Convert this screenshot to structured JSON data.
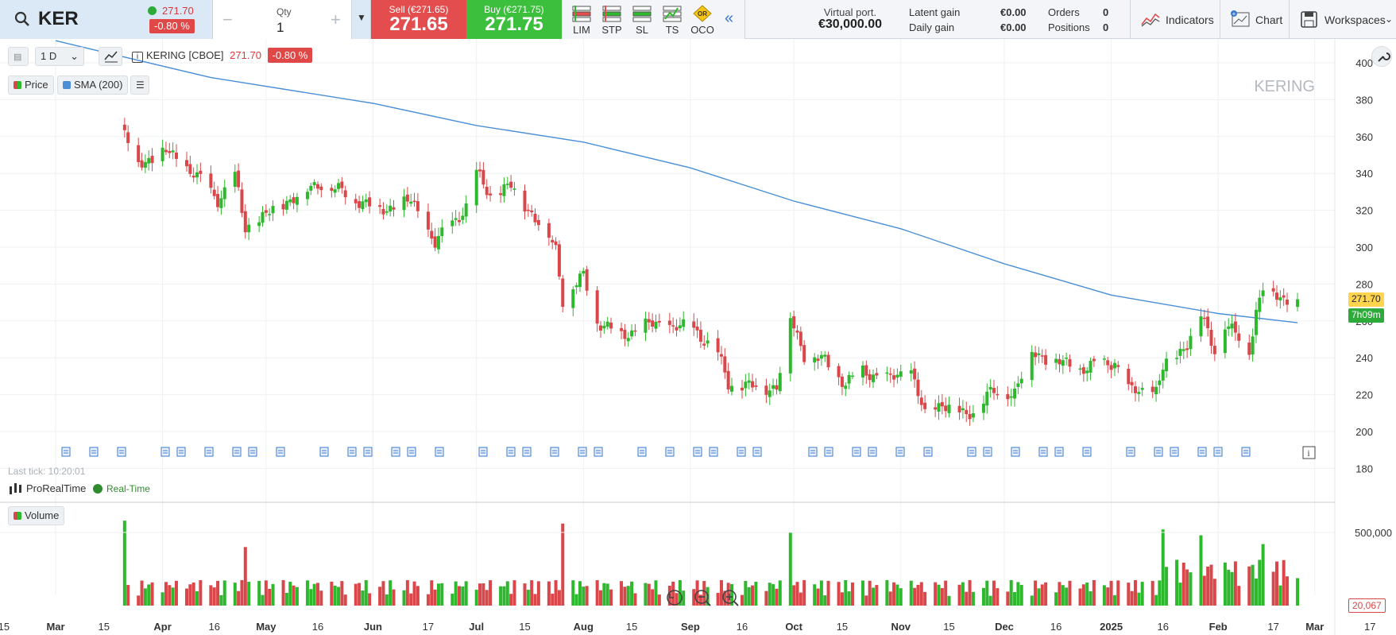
{
  "toolbar": {
    "symbol": "KER",
    "last_price": "271.70",
    "change_pct": "-0.80 %",
    "qty_label": "Qty",
    "qty_value": "1",
    "sell_label": "Sell (€271.65)",
    "sell_price": "271.65",
    "buy_label": "Buy (€271.75)",
    "buy_price": "271.75",
    "order_types": [
      "LIM",
      "STP",
      "SL",
      "TS",
      "OCO"
    ],
    "oco_icon_text": "OR",
    "virtual_port_label": "Virtual port.",
    "virtual_port_value": "€30,000.00",
    "latent_gain_label": "Latent gain",
    "latent_gain_value": "€0.00",
    "daily_gain_label": "Daily gain",
    "daily_gain_value": "€0.00",
    "orders_label": "Orders",
    "orders_value": "0",
    "positions_label": "Positions",
    "positions_value": "0",
    "indicators_label": "Indicators",
    "chart_label": "Chart",
    "workspaces_label": "Workspaces"
  },
  "chart_header": {
    "interval": "1 D",
    "instrument": "KERING [CBOE]",
    "last_price": "271.70",
    "change_pct": "-0.80 %",
    "legend_price": "Price",
    "legend_sma": "SMA (200)",
    "watermark": "KERING",
    "last_tick": "Last tick: 10:20:01",
    "provider": "ProRealTime",
    "realtime": "Real-Time",
    "volume_label": "Volume",
    "price_badge": "271.70",
    "countdown_badge": "7h09m",
    "volume_badge": "20,067"
  },
  "colors": {
    "up": "#2eb82e",
    "down": "#d9474a",
    "sma": "#4a8fd6",
    "price_badge": "#ffd54f",
    "countdown_badge": "#2eaa3a"
  },
  "chart_data": [
    {
      "type": "candlestick",
      "title": "KERING [CBOE]",
      "interval": "1 D",
      "ylim": [
        180,
        400
      ],
      "yticks": [
        180,
        200,
        220,
        240,
        260,
        280,
        300,
        320,
        340,
        360,
        380,
        400
      ],
      "xticks": [
        "15",
        "Mar",
        "15",
        "Apr",
        "16",
        "May",
        "16",
        "Jun",
        "17",
        "Jul",
        "15",
        "Aug",
        "15",
        "Sep",
        "16",
        "Oct",
        "15",
        "Nov",
        "15",
        "Dec",
        "16",
        "2025",
        "16",
        "Feb",
        "17",
        "Mar",
        "17"
      ],
      "series": [
        {
          "name": "Price",
          "anchors": [
            {
              "date": "2024-03-21",
              "close": 362
            },
            {
              "date": "2024-03-25",
              "close": 345
            },
            {
              "date": "2024-04-02",
              "close": 352
            },
            {
              "date": "2024-04-10",
              "close": 340
            },
            {
              "date": "2024-04-17",
              "close": 326
            },
            {
              "date": "2024-04-22",
              "close": 338
            },
            {
              "date": "2024-04-25",
              "close": 310
            },
            {
              "date": "2024-05-07",
              "close": 325
            },
            {
              "date": "2024-05-17",
              "close": 335
            },
            {
              "date": "2024-06-03",
              "close": 320
            },
            {
              "date": "2024-06-12",
              "close": 325
            },
            {
              "date": "2024-06-19",
              "close": 302
            },
            {
              "date": "2024-06-28",
              "close": 322
            },
            {
              "date": "2024-07-01",
              "close": 340
            },
            {
              "date": "2024-07-05",
              "close": 328
            },
            {
              "date": "2024-07-11",
              "close": 333
            },
            {
              "date": "2024-07-22",
              "close": 306
            },
            {
              "date": "2024-07-24",
              "close": 299
            },
            {
              "date": "2024-07-26",
              "close": 272
            },
            {
              "date": "2024-08-01",
              "close": 284
            },
            {
              "date": "2024-08-05",
              "close": 260
            },
            {
              "date": "2024-08-12",
              "close": 252
            },
            {
              "date": "2024-08-20",
              "close": 258
            },
            {
              "date": "2024-09-02",
              "close": 256
            },
            {
              "date": "2024-09-09",
              "close": 242
            },
            {
              "date": "2024-09-12",
              "close": 226
            },
            {
              "date": "2024-09-20",
              "close": 224
            },
            {
              "date": "2024-09-26",
              "close": 224
            },
            {
              "date": "2024-09-30",
              "close": 262
            },
            {
              "date": "2024-10-04",
              "close": 242
            },
            {
              "date": "2024-10-10",
              "close": 238
            },
            {
              "date": "2024-10-16",
              "close": 226
            },
            {
              "date": "2024-10-21",
              "close": 233
            },
            {
              "date": "2024-10-28",
              "close": 228
            },
            {
              "date": "2024-11-04",
              "close": 233
            },
            {
              "date": "2024-11-08",
              "close": 208
            },
            {
              "date": "2024-11-13",
              "close": 216
            },
            {
              "date": "2024-11-20",
              "close": 208
            },
            {
              "date": "2024-11-26",
              "close": 220
            },
            {
              "date": "2024-12-04",
              "close": 222
            },
            {
              "date": "2024-12-09",
              "close": 243
            },
            {
              "date": "2024-12-16",
              "close": 238
            },
            {
              "date": "2024-12-23",
              "close": 234
            },
            {
              "date": "2025-01-02",
              "close": 238
            },
            {
              "date": "2025-01-06",
              "close": 222
            },
            {
              "date": "2025-01-14",
              "close": 222
            },
            {
              "date": "2025-01-16",
              "close": 234
            },
            {
              "date": "2025-01-23",
              "close": 248
            },
            {
              "date": "2025-01-27",
              "close": 263
            },
            {
              "date": "2025-01-31",
              "close": 245
            },
            {
              "date": "2025-02-03",
              "close": 258
            },
            {
              "date": "2025-02-10",
              "close": 245
            },
            {
              "date": "2025-02-12",
              "close": 265
            },
            {
              "date": "2025-02-14",
              "close": 278
            },
            {
              "date": "2025-02-20",
              "close": 272
            },
            {
              "date": "2025-02-24",
              "close": 271.7
            }
          ]
        },
        {
          "name": "SMA (200)",
          "anchors": [
            {
              "date": "2024-03-01",
              "close": 412
            },
            {
              "date": "2024-04-15",
              "close": 392
            },
            {
              "date": "2024-06-01",
              "close": 378
            },
            {
              "date": "2024-07-01",
              "close": 366
            },
            {
              "date": "2024-08-01",
              "close": 357
            },
            {
              "date": "2024-09-01",
              "close": 343
            },
            {
              "date": "2024-10-01",
              "close": 325
            },
            {
              "date": "2024-11-01",
              "close": 310
            },
            {
              "date": "2024-12-01",
              "close": 291
            },
            {
              "date": "2025-01-01",
              "close": 274
            },
            {
              "date": "2025-02-01",
              "close": 264
            },
            {
              "date": "2025-02-24",
              "close": 259
            }
          ]
        },
        {
          "name": "Volume",
          "ylim": [
            0,
            700000
          ],
          "yticks": [
            500000
          ],
          "spikes": [
            {
              "date": "2024-03-21",
              "volume": 580000
            },
            {
              "date": "2024-04-25",
              "volume": 400000
            },
            {
              "date": "2024-07-26",
              "volume": 560000
            },
            {
              "date": "2024-09-30",
              "volume": 500000
            },
            {
              "date": "2025-01-16",
              "volume": 520000
            },
            {
              "date": "2025-01-27",
              "volume": 480000
            },
            {
              "date": "2025-02-14",
              "volume": 420000
            }
          ],
          "typical_volume": 120000
        }
      ]
    }
  ]
}
